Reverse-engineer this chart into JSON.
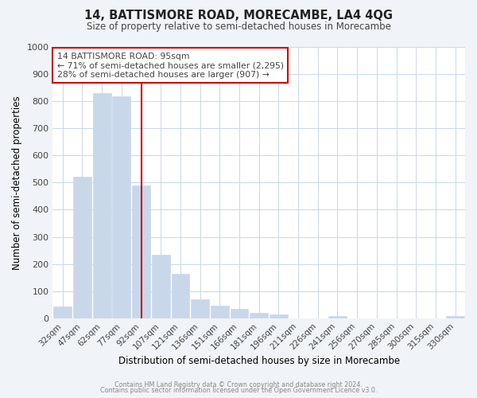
{
  "title": "14, BATTISMORE ROAD, MORECAMBE, LA4 4QG",
  "subtitle": "Size of property relative to semi-detached houses in Morecambe",
  "xlabel": "Distribution of semi-detached houses by size in Morecambe",
  "ylabel": "Number of semi-detached properties",
  "bin_labels": [
    "32sqm",
    "47sqm",
    "62sqm",
    "77sqm",
    "92sqm",
    "107sqm",
    "121sqm",
    "136sqm",
    "151sqm",
    "166sqm",
    "181sqm",
    "196sqm",
    "211sqm",
    "226sqm",
    "241sqm",
    "256sqm",
    "270sqm",
    "285sqm",
    "300sqm",
    "315sqm",
    "330sqm"
  ],
  "values": [
    42,
    522,
    830,
    818,
    490,
    235,
    163,
    70,
    46,
    33,
    19,
    14,
    0,
    0,
    9,
    0,
    0,
    0,
    0,
    0,
    8
  ],
  "bar_color": "#c8d8ea",
  "vline_index": 4,
  "vline_color": "#cc0000",
  "annotation_line1": "14 BATTISMORE ROAD: 95sqm",
  "annotation_line2": "← 71% of semi-detached houses are smaller (2,295)",
  "annotation_line3": "28% of semi-detached houses are larger (907) →",
  "ylim": [
    0,
    1000
  ],
  "yticks": [
    0,
    100,
    200,
    300,
    400,
    500,
    600,
    700,
    800,
    900,
    1000
  ],
  "footer1": "Contains HM Land Registry data © Crown copyright and database right 2024.",
  "footer2": "Contains public sector information licensed under the Open Government Licence v3.0.",
  "bg_color": "#f0f4f8",
  "plot_bg_color": "#ffffff",
  "grid_color": "#c8d8e8",
  "title_color": "#222222",
  "text_color": "#444444"
}
